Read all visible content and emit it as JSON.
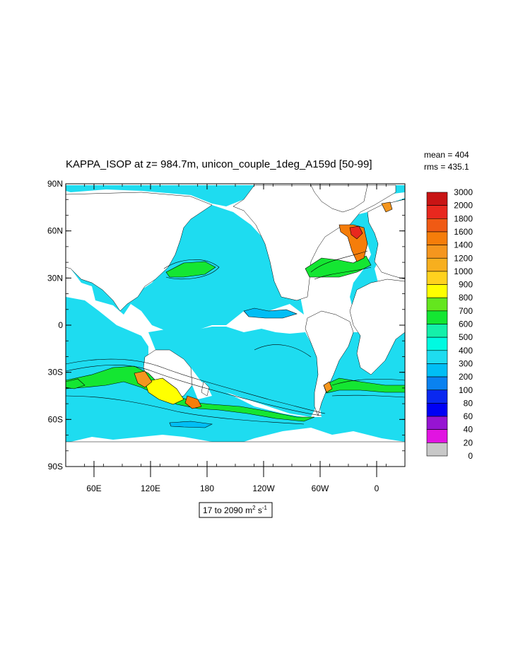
{
  "chart_data": {
    "type": "heatmap",
    "title": "KAPPA_ISOP at z= 984.7m, unicon_couple_1deg_A159d [50-99]",
    "stats": {
      "mean_text": "mean = 404",
      "rms_text": "rms = 435.1"
    },
    "units_label": {
      "range": "17 to 2090",
      "unit_base": "m",
      "unit_exp": "2",
      "unit_tail": " s",
      "unit_tail_exp": "-1"
    },
    "projection": "cylindrical-equidistant",
    "lon_range": [
      30,
      390
    ],
    "lat_range": [
      -90,
      90
    ],
    "x_ticks": [
      {
        "lon": 60,
        "label": "60E"
      },
      {
        "lon": 120,
        "label": "120E"
      },
      {
        "lon": 180,
        "label": "180"
      },
      {
        "lon": 240,
        "label": "120W"
      },
      {
        "lon": 300,
        "label": "60W"
      },
      {
        "lon": 360,
        "label": "0"
      }
    ],
    "y_ticks": [
      {
        "lat": 90,
        "label": "90N"
      },
      {
        "lat": 60,
        "label": "60N"
      },
      {
        "lat": 30,
        "label": "30N"
      },
      {
        "lat": 0,
        "label": "0"
      },
      {
        "lat": -30,
        "label": "30S"
      },
      {
        "lat": -60,
        "label": "60S"
      },
      {
        "lat": -90,
        "label": "90S"
      }
    ],
    "colorbar": {
      "levels": [
        "3000",
        "2000",
        "1800",
        "1600",
        "1400",
        "1200",
        "1000",
        "900",
        "800",
        "700",
        "600",
        "500",
        "400",
        "300",
        "200",
        "100",
        "80",
        "60",
        "40",
        "20",
        "0"
      ],
      "colors": [
        "#ffffff",
        "#c81414",
        "#e8281e",
        "#f05a14",
        "#f57d0a",
        "#f5961e",
        "#f7af1e",
        "#ffd21e",
        "#ffff00",
        "#64e61e",
        "#14e632",
        "#14f0aa",
        "#00fae1",
        "#1edcf0",
        "#00bef5",
        "#0a82f0",
        "#0a28f0",
        "#0000f5",
        "#9614d2",
        "#e114e1",
        "#c8c8c8",
        "#6e6e6e"
      ]
    },
    "ocean_fill_color": "#1edcf0",
    "grid": false,
    "colorbar_placement": "right"
  }
}
